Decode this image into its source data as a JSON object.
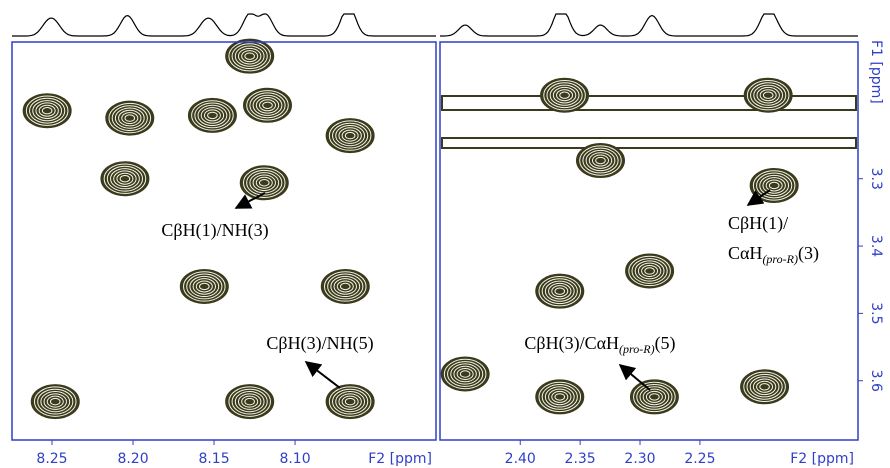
{
  "chart_data": [
    {
      "type": "contour",
      "xlabel": "F2 [ppm]",
      "color": "#3a3a1c",
      "xlim": [
        8.2747,
        8.013
      ],
      "xticks": [
        8.25,
        {
          "value": 8.2,
          "label": "8.20"
        },
        8.15,
        {
          "value": 8.1,
          "label": "8.10"
        }
      ],
      "ylim": [
        3.097,
        3.688
      ],
      "x": [
        8.128,
        8.253,
        8.202,
        8.151,
        8.117,
        8.066,
        8.205,
        8.119,
        8.156,
        8.069,
        8.248,
        8.128,
        8.066
      ],
      "values": [
        3.118,
        3.199,
        3.21,
        3.206,
        3.191,
        3.236,
        3.3,
        3.306,
        3.46,
        3.46,
        3.631,
        3.631,
        3.631
      ],
      "annotations": [
        {
          "lines": [
            [
              {
                "text": "CβH(1)/NH(3)"
              }
            ]
          ]
        },
        {
          "lines": [
            [
              {
                "text": "CβH(3)/NH(5)"
              }
            ]
          ]
        }
      ]
    },
    {
      "type": "contour",
      "xlabel": "F2 [ppm]",
      "ylabel": "F1 [ppm]",
      "color": "#3a3a1c",
      "xlim": [
        2.467,
        2.118
      ],
      "xticks": [
        {
          "value": 2.4,
          "label": "2.40"
        },
        2.35,
        {
          "value": 2.3,
          "label": "2.30"
        },
        2.25
      ],
      "ylim": [
        3.097,
        3.688
      ],
      "yticks": [
        3.3,
        3.4,
        3.5,
        3.6
      ],
      "x": [
        2.363,
        2.193,
        2.333,
        2.188,
        2.367,
        2.292,
        2.367,
        2.288,
        2.196,
        2.446
      ],
      "values": [
        3.176,
        3.176,
        3.273,
        3.31,
        3.467,
        3.437,
        3.624,
        3.624,
        3.609,
        3.59
      ],
      "annotations": [
        {
          "lines": [
            [
              {
                "text": "CβH(1)/"
              }
            ],
            [
              {
                "text": "CαH"
              },
              {
                "text": "(pro-R)",
                "sub": true
              },
              {
                "text": "(3)"
              }
            ]
          ]
        },
        {
          "lines": [
            [
              {
                "text": "CβH(3)/CαH"
              },
              {
                "text": "(pro-R)",
                "sub": true
              },
              {
                "text": "(5)"
              }
            ]
          ]
        }
      ]
    }
  ]
}
